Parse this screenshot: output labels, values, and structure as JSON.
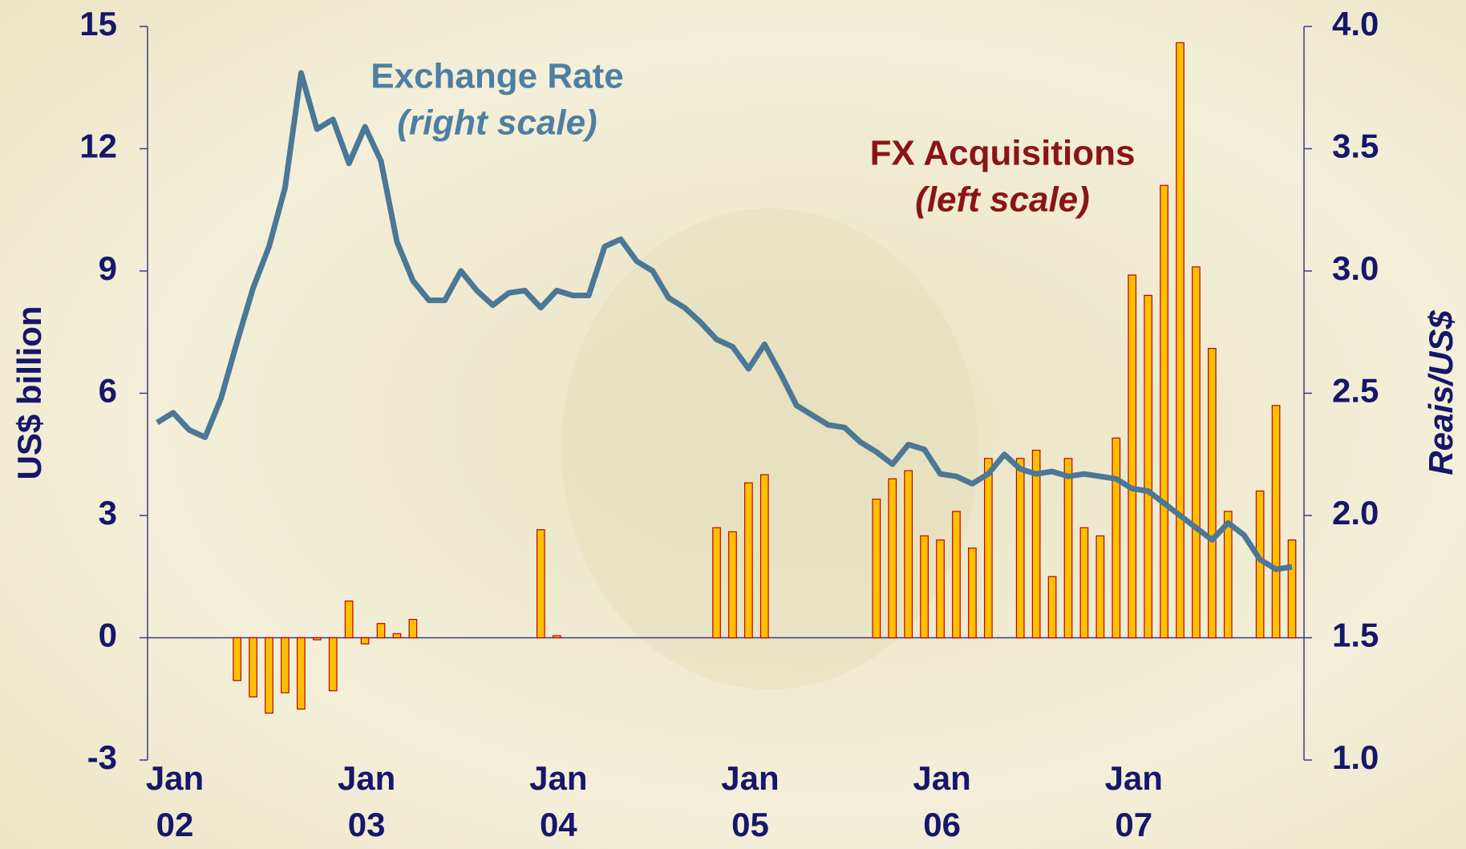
{
  "chart_data": {
    "type": "bar",
    "x_label": "",
    "y_label": "US$ billion",
    "y2_label": "Reais/US$",
    "categories": [
      "Jan 02",
      null,
      null,
      null,
      null,
      null,
      null,
      null,
      null,
      null,
      null,
      null,
      "Jan 03",
      null,
      null,
      null,
      null,
      null,
      null,
      null,
      null,
      null,
      null,
      null,
      "Jan 04",
      null,
      null,
      null,
      null,
      null,
      null,
      null,
      null,
      null,
      null,
      null,
      "Jan 05",
      null,
      null,
      null,
      null,
      null,
      null,
      null,
      null,
      null,
      null,
      null,
      "Jan 06",
      null,
      null,
      null,
      null,
      null,
      null,
      null,
      null,
      null,
      null,
      null,
      "Jan 07",
      null,
      null,
      null,
      null,
      null,
      null,
      null,
      null,
      null,
      null,
      null
    ],
    "series": [
      {
        "name": "FX Acquisitions",
        "type": "bar",
        "color": "#ffc000",
        "edge_color": "#c00000",
        "values": [
          null,
          null,
          null,
          null,
          null,
          -1.05,
          -1.45,
          -1.85,
          -1.35,
          -1.75,
          -0.05,
          -1.3,
          0.9,
          -0.15,
          0.35,
          0.1,
          0.45,
          null,
          null,
          null,
          null,
          null,
          null,
          null,
          2.65,
          0.05,
          null,
          null,
          null,
          null,
          null,
          null,
          null,
          null,
          null,
          2.7,
          2.6,
          3.8,
          4.0,
          null,
          null,
          null,
          null,
          null,
          null,
          3.4,
          3.9,
          4.1,
          2.5,
          2.4,
          3.1,
          2.2,
          4.4,
          null,
          4.4,
          4.6,
          1.5,
          4.4,
          2.7,
          2.5,
          4.9,
          8.9,
          8.4,
          11.1,
          14.6,
          9.1,
          7.1,
          3.1,
          null,
          3.6,
          5.7,
          2.4
        ]
      },
      {
        "name": "Exchange Rate",
        "type": "line",
        "axis": "y2",
        "color": "#4a7896",
        "values": [
          2.38,
          2.42,
          2.35,
          2.32,
          2.48,
          2.71,
          2.93,
          3.1,
          3.34,
          3.81,
          3.58,
          3.62,
          3.44,
          3.59,
          3.45,
          3.12,
          2.96,
          2.88,
          2.88,
          3.0,
          2.92,
          2.86,
          2.91,
          2.92,
          2.85,
          2.92,
          2.9,
          2.9,
          3.1,
          3.13,
          3.04,
          3.0,
          2.89,
          2.85,
          2.79,
          2.72,
          2.69,
          2.6,
          2.7,
          2.58,
          2.45,
          2.41,
          2.37,
          2.36,
          2.3,
          2.26,
          2.21,
          2.29,
          2.27,
          2.17,
          2.16,
          2.13,
          2.17,
          2.25,
          2.19,
          2.17,
          2.18,
          2.16,
          2.17,
          2.16,
          2.15,
          2.11,
          2.1,
          2.05,
          2.0,
          1.95,
          1.9,
          1.97,
          1.92,
          1.82,
          1.78,
          1.79
        ]
      }
    ],
    "annotations": [
      {
        "text": "(right scale)",
        "for": 1
      },
      {
        "text": "(left scale)",
        "for": 0
      }
    ],
    "ylim": [
      -3,
      15
    ],
    "yticks": [
      -3,
      0,
      3,
      6,
      9,
      12,
      15
    ],
    "y2lim": [
      1.0,
      4.0
    ],
    "y2ticks": [
      {
        "value": 1.0,
        "label": "1.0"
      },
      1.5,
      {
        "value": 2.0,
        "label": "2.0"
      },
      2.5,
      {
        "value": 3.0,
        "label": "3.0"
      },
      3.5,
      {
        "value": 4.0,
        "label": "4.0"
      }
    ],
    "grid": false
  }
}
